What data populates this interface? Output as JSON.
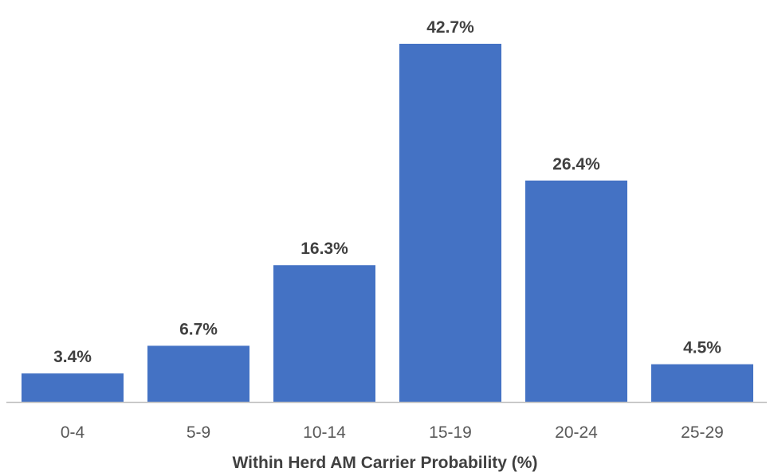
{
  "chart_data": {
    "type": "bar",
    "categories": [
      "0-4",
      "5-9",
      "10-14",
      "15-19",
      "20-24",
      "25-29"
    ],
    "values": [
      3.4,
      6.7,
      16.3,
      42.7,
      26.4,
      4.5
    ],
    "data_labels": [
      "3.4%",
      "6.7%",
      "16.3%",
      "42.7%",
      "26.4%",
      "4.5%"
    ],
    "title": "",
    "xlabel": "Within Herd AM Carrier Probability (%)",
    "ylabel": "",
    "ylim": [
      0,
      45
    ],
    "grid": false,
    "legend": "none",
    "bar_color": "#4472c4"
  }
}
